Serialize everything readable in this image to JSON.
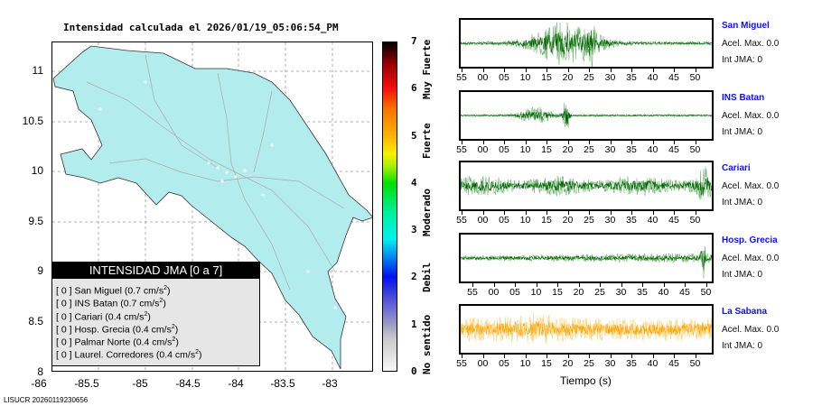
{
  "title": "Intensidad calculada el 2026/01/19_05:06:54_PM",
  "map": {
    "lon_labels": [
      "-86",
      "-85.5",
      "-85",
      "-84.5",
      "-84",
      "-83.5",
      "-83"
    ],
    "lat_labels": [
      "11",
      "10.5",
      "10",
      "9.5",
      "9",
      "8.5",
      "8"
    ]
  },
  "legend": {
    "heading": "INTENSIDAD JMA [0 a 7]",
    "items": [
      {
        "level": "[ 0 ]",
        "name": "San Miguel",
        "value": "(0.7 cm/s",
        "sup": "2",
        "close": ")"
      },
      {
        "level": "[ 0 ]",
        "name": "INS Batan",
        "value": "(0.7 cm/s",
        "sup": "2",
        "close": ")"
      },
      {
        "level": "[ 0 ]",
        "name": "Cariari",
        "value": "(0.4 cm/s",
        "sup": "2",
        "close": ")"
      },
      {
        "level": "[ 0 ]",
        "name": "Hosp. Grecia",
        "value": "(0.4 cm/s",
        "sup": "2",
        "close": ")"
      },
      {
        "level": "[ 0 ]",
        "name": "Palmar Norte",
        "value": "(0.4 cm/s",
        "sup": "2",
        "close": ")"
      },
      {
        "level": "[ 0 ]",
        "name": "Laurel. Corredores",
        "value": "(0.4 cm/s",
        "sup": "2",
        "close": ")"
      }
    ]
  },
  "colorbar": {
    "ticks": [
      "7",
      "6",
      "5",
      "4",
      "3",
      "2",
      "1",
      "0"
    ],
    "categories": [
      "Muy Fuerte",
      "Fuerte",
      "Moderado",
      "Debil",
      "No sentido"
    ]
  },
  "stations": [
    {
      "name": "San Miguel",
      "acel": "Acel. Max. 0.0",
      "int": "Int JMA: 0",
      "color": "#006400"
    },
    {
      "name": "INS Batan",
      "acel": "Acel. Max. 0.0",
      "int": "Int JMA: 0",
      "color": "#006400"
    },
    {
      "name": "Cariari",
      "acel": "Acel. Max. 0.0",
      "int": "Int JMA: 0",
      "color": "#006400"
    },
    {
      "name": "Hosp. Grecia",
      "acel": "Acel. Max. 0.0",
      "int": "Int JMA: 0",
      "color": "#006400"
    },
    {
      "name": "La Sabana",
      "acel": "Acel. Max. 0.0",
      "int": "Int JMA: 0",
      "color": "#ffa500"
    }
  ],
  "time_ticks": [
    "55",
    "00",
    "05",
    "10",
    "15",
    "20",
    "25",
    "30",
    "35",
    "40",
    "45",
    "50"
  ],
  "xlabel": "Tiempo (s)",
  "footer": "LISUCR 20260119230656"
}
